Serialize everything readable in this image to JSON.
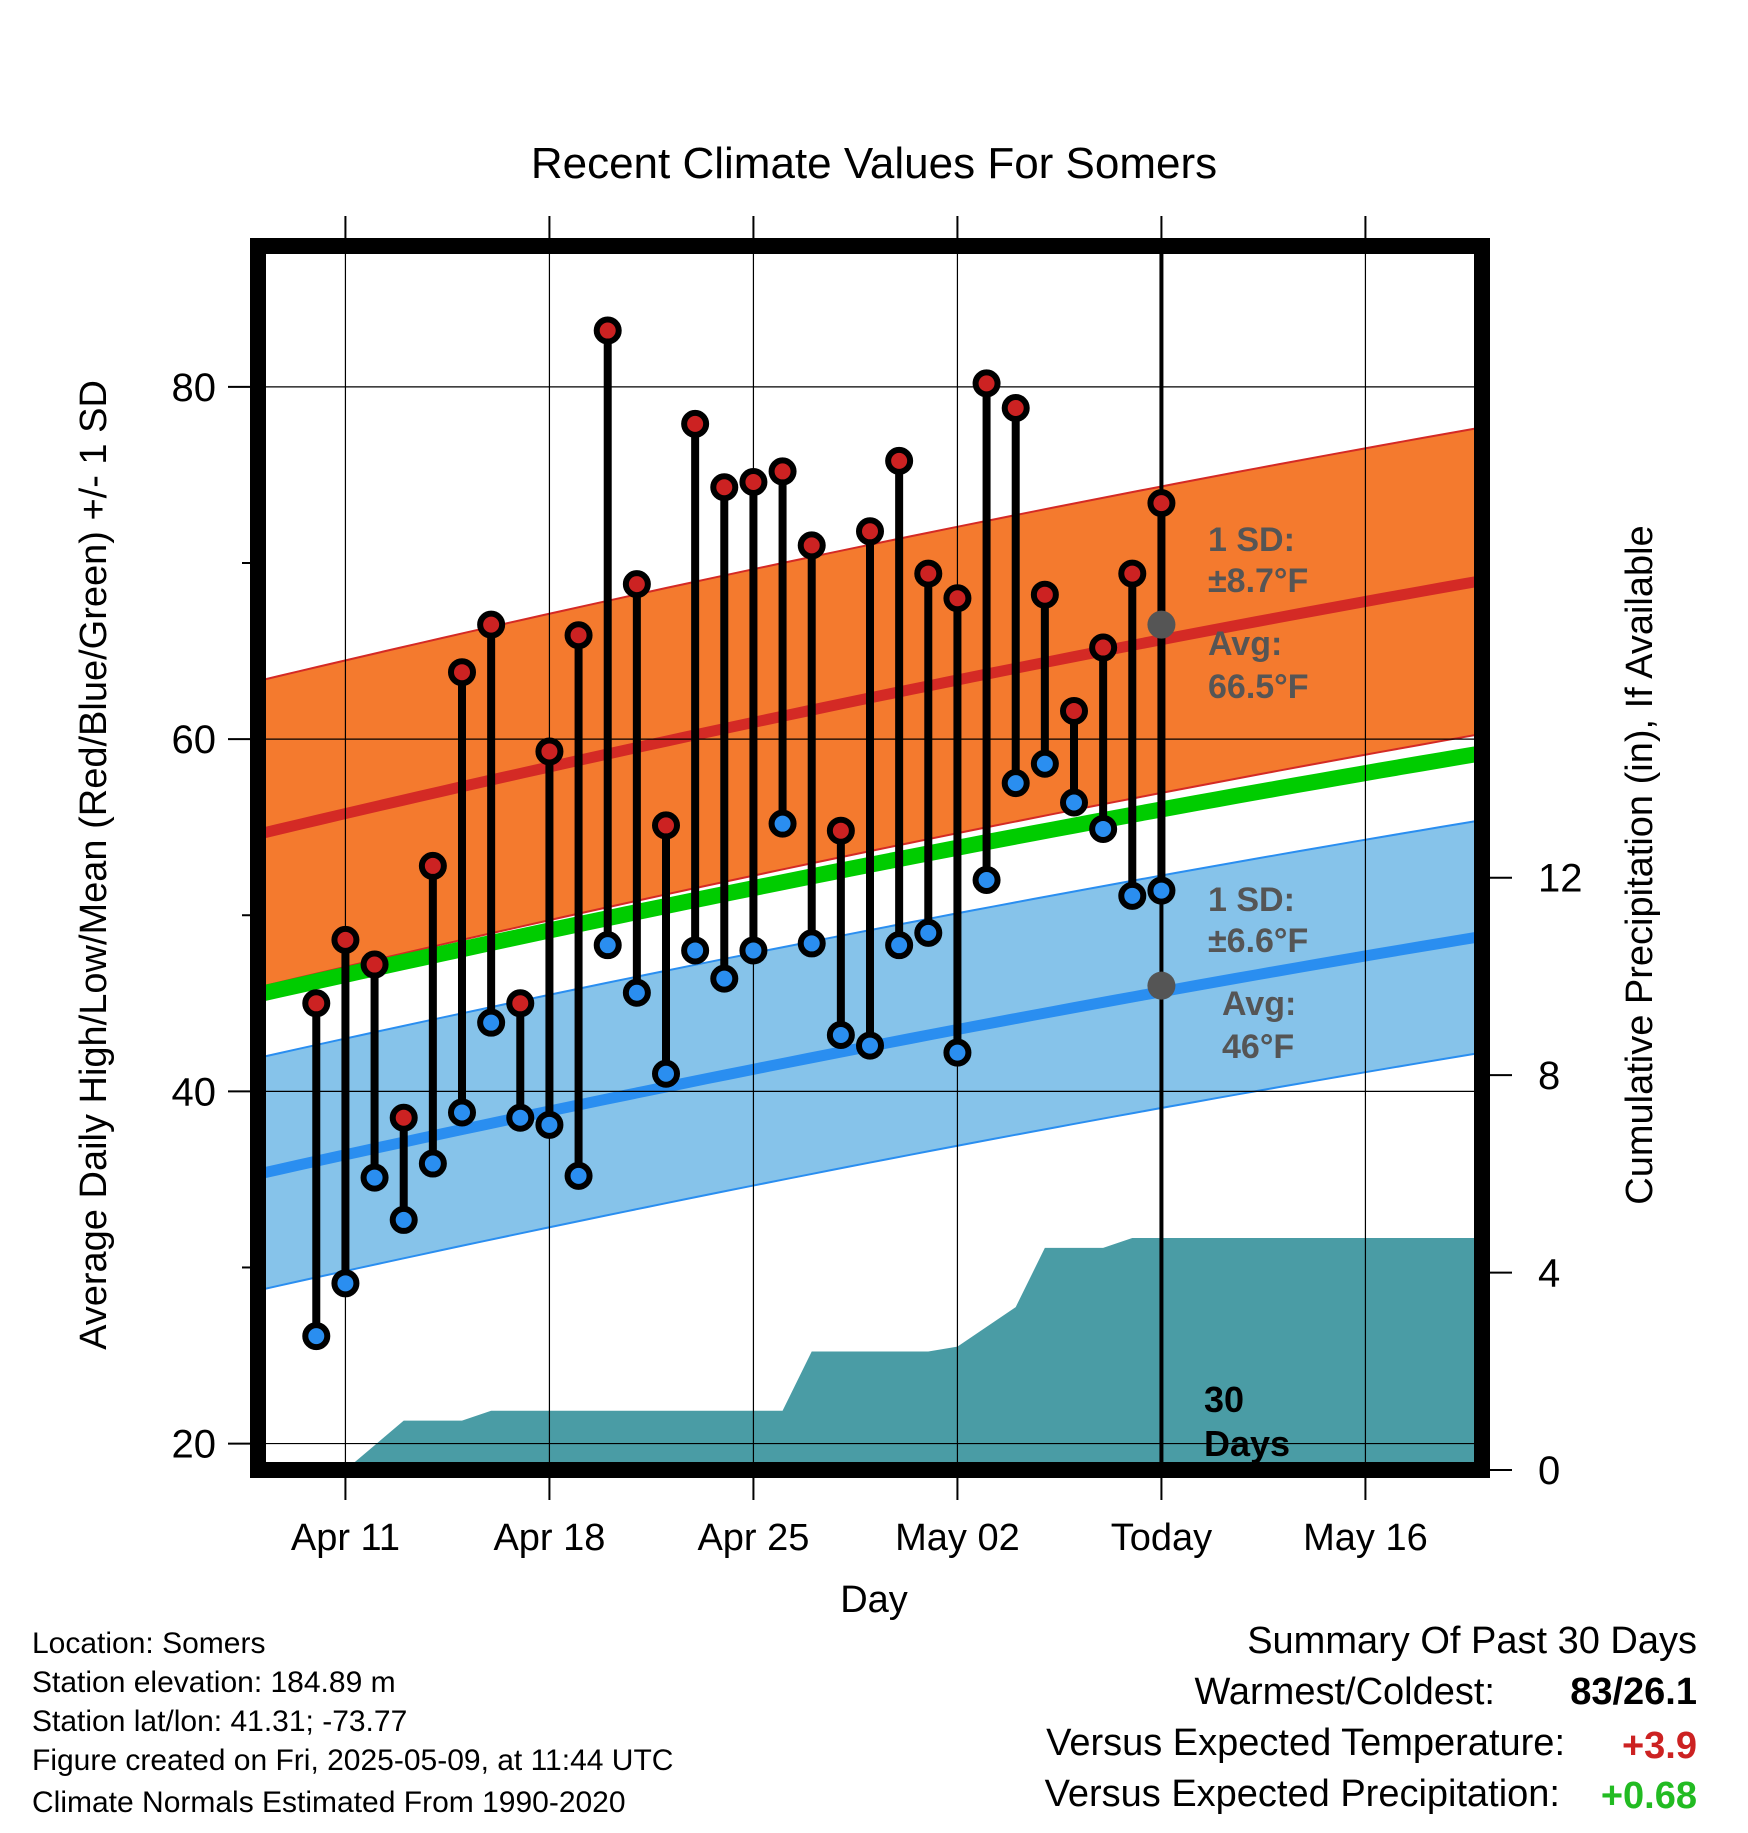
{
  "chart_data": {
    "type": "line",
    "title": "Recent Climate Values For Somers",
    "xlabel": "Day",
    "ylabel": "Average Daily High/Low/Mean (Red/Blue/Green) +/- 1 SD",
    "y2label": "Cumulative Precipitation (in), If Available",
    "ylim": [
      18.5,
      88
    ],
    "y2lim": [
      0,
      24.8
    ],
    "xlim": [
      "2025-04-08",
      "2025-05-20"
    ],
    "yticks": [
      20,
      40,
      60,
      80
    ],
    "y2ticks": [
      0,
      4,
      8,
      12
    ],
    "xticks": [
      {
        "date": "2025-04-11",
        "label": "Apr 11"
      },
      {
        "date": "2025-04-18",
        "label": "Apr 18"
      },
      {
        "date": "2025-04-25",
        "label": "Apr 25"
      },
      {
        "date": "2025-05-02",
        "label": "May 02"
      },
      {
        "date": "2025-05-09",
        "label": "Today"
      },
      {
        "date": "2025-05-16",
        "label": "May 16"
      }
    ],
    "grid": true,
    "today": "2025-05-09",
    "today_label": "30\nDays",
    "dates": [
      "2025-04-10",
      "2025-04-11",
      "2025-04-12",
      "2025-04-13",
      "2025-04-14",
      "2025-04-15",
      "2025-04-16",
      "2025-04-17",
      "2025-04-18",
      "2025-04-19",
      "2025-04-20",
      "2025-04-21",
      "2025-04-22",
      "2025-04-23",
      "2025-04-24",
      "2025-04-25",
      "2025-04-26",
      "2025-04-27",
      "2025-04-28",
      "2025-04-29",
      "2025-04-30",
      "2025-05-01",
      "2025-05-02",
      "2025-05-03",
      "2025-05-04",
      "2025-05-05",
      "2025-05-06",
      "2025-05-07",
      "2025-05-08"
    ],
    "highs": [
      45,
      48.6,
      47.2,
      38.5,
      52.8,
      63.8,
      66.5,
      45,
      59.3,
      65.9,
      83.2,
      68.8,
      55.1,
      77.9,
      74.3,
      74.6,
      75.2,
      71,
      54.8,
      71.8,
      75.8,
      69.4,
      68,
      80.2,
      78.8,
      68.2,
      61.6,
      65.2,
      69.4
    ],
    "lows": [
      26.1,
      29.1,
      35.1,
      32.7,
      35.9,
      38.8,
      43.9,
      38.5,
      38.1,
      35.2,
      48.3,
      45.6,
      41,
      48,
      46.4,
      48,
      55.2,
      48.4,
      43.2,
      42.6,
      48.3,
      49,
      42.2,
      52,
      57.5,
      58.6,
      56.4,
      54.9,
      51.1
    ],
    "extra_points": [
      {
        "date": "2025-05-08",
        "high": 73.4,
        "low": 51.4
      }
    ],
    "normals": {
      "dates": [
        "2025-04-08",
        "2025-05-20"
      ],
      "mean_start": 45.5,
      "mean_end": 59.2,
      "high_start": 54.6,
      "high_end": 69,
      "high_sd": 8.7,
      "low_start": 35.3,
      "low_end": 48.8,
      "low_sd": 6.6
    },
    "annotations": {
      "high_sd": "1 SD:",
      "high_sd_value": "±8.7°F",
      "high_avg": "Avg:",
      "high_avg_value": "66.5°F",
      "low_sd": "1 SD:",
      "low_sd_value": "±6.6°F",
      "low_avg": "Avg:",
      "low_avg_value": "46°F",
      "today_high_avg": 66.5,
      "today_low_avg": 46
    },
    "precip": {
      "dates": [
        "2025-04-10",
        "2025-04-11",
        "2025-04-12",
        "2025-04-13",
        "2025-04-14",
        "2025-04-15",
        "2025-04-16",
        "2025-04-17",
        "2025-04-18",
        "2025-04-19",
        "2025-04-20",
        "2025-04-21",
        "2025-04-22",
        "2025-04-23",
        "2025-04-24",
        "2025-04-25",
        "2025-04-26",
        "2025-04-27",
        "2025-04-28",
        "2025-04-29",
        "2025-04-30",
        "2025-05-01",
        "2025-05-02",
        "2025-05-03",
        "2025-05-04",
        "2025-05-05",
        "2025-05-06",
        "2025-05-07",
        "2025-05-08",
        "2025-05-09",
        "2025-05-20"
      ],
      "values": [
        0,
        0,
        0.5,
        1,
        1,
        1,
        1.2,
        1.2,
        1.2,
        1.2,
        1.2,
        1.2,
        1.2,
        1.2,
        1.2,
        1.2,
        1.2,
        2.4,
        2.4,
        2.4,
        2.4,
        2.4,
        2.5,
        2.9,
        3.3,
        4.5,
        4.5,
        4.5,
        4.7,
        4.7,
        4.7
      ]
    }
  },
  "footer": {
    "location": "Location: Somers",
    "elevation": "Station elevation: 184.89 m",
    "latlon": "Station lat/lon: 41.31; -73.77",
    "created": "Figure created on Fri, 2025-05-09, at 11:44 UTC",
    "normals": "Climate Normals Estimated From 1990-2020"
  },
  "summary": {
    "title": "Summary Of Past 30 Days",
    "warmest_label": "Warmest/Coldest:",
    "warmest_value": "83/26.1",
    "temp_label": "Versus Expected Temperature:",
    "temp_value": "+3.9",
    "precip_label": "Versus Expected Precipitation:",
    "precip_value": "+0.68"
  },
  "colors": {
    "high_band": "#f47a2e",
    "high_line": "#d42a25",
    "low_band": "#86c3ea",
    "low_line": "#2a8ef0",
    "mean_line": "#00cc00",
    "precip": "#4a9ca5",
    "high_marker": "#cc2222",
    "low_marker": "#2a8ef0",
    "annotation": "#555555",
    "temp_value": "#cc2222",
    "precip_value": "#22bb22"
  }
}
